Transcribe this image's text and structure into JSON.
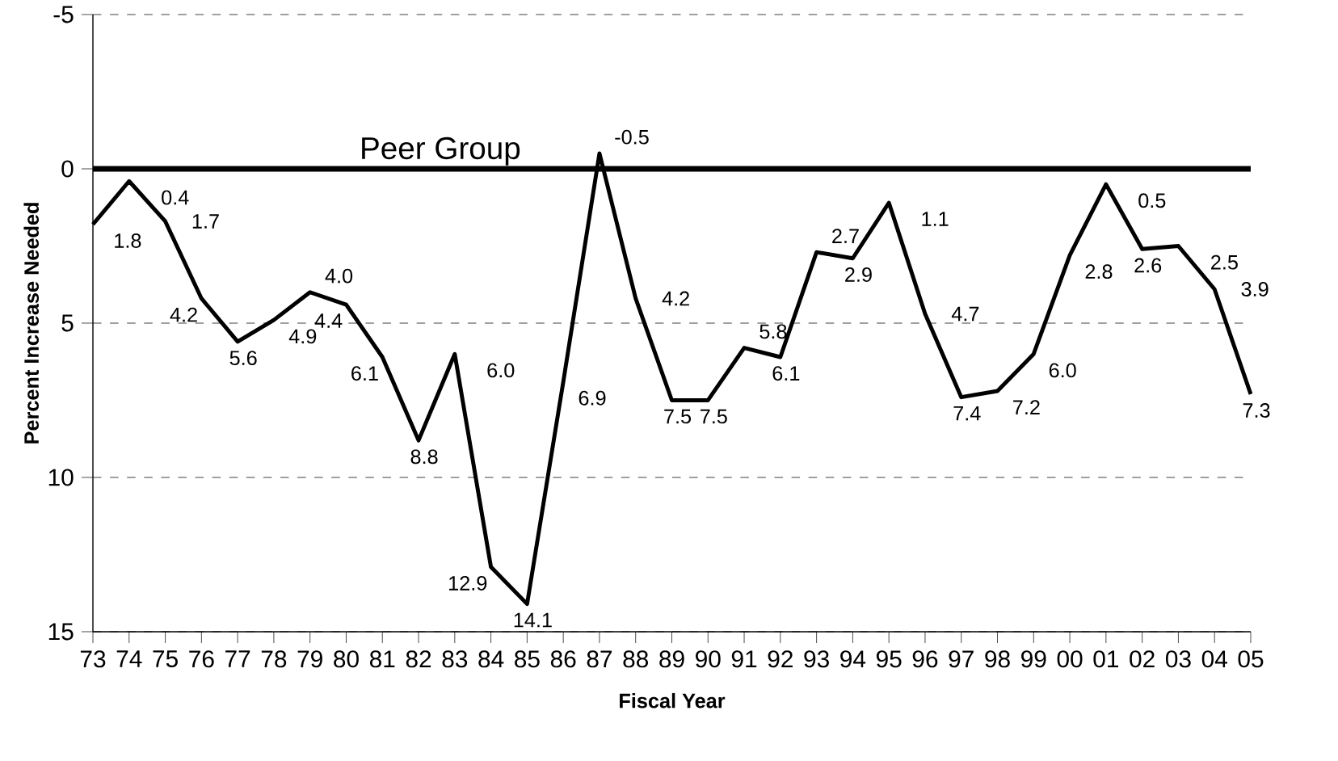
{
  "chart_data": {
    "type": "line",
    "xlabel": "Fiscal Year",
    "ylabel": "Percent Increase Needed",
    "categories": [
      "73",
      "74",
      "75",
      "76",
      "77",
      "78",
      "79",
      "80",
      "81",
      "82",
      "83",
      "84",
      "85",
      "86",
      "87",
      "88",
      "89",
      "90",
      "91",
      "92",
      "93",
      "94",
      "95",
      "96",
      "97",
      "98",
      "99",
      "00",
      "01",
      "02",
      "03",
      "04",
      "05"
    ],
    "series": [
      {
        "color": "#000000",
        "values": [
          1.8,
          0.4,
          1.7,
          4.2,
          5.6,
          4.9,
          4.0,
          4.4,
          6.1,
          8.8,
          6.0,
          12.9,
          14.1,
          6.9,
          -0.5,
          4.2,
          7.5,
          7.5,
          5.8,
          6.1,
          2.7,
          2.9,
          1.1,
          4.7,
          7.4,
          7.2,
          6.0,
          2.8,
          0.5,
          2.6,
          2.5,
          3.9,
          7.3
        ],
        "value_labels": [
          "1.8",
          "0.4",
          "1.7",
          "4.2",
          "5.6",
          "4.9",
          "4.0",
          "4.4",
          "6.1",
          "8.8",
          "6.0",
          "12.9",
          "14.1",
          "6.9",
          "-0.5",
          "4.2",
          "7.5",
          "7.5",
          "5.8",
          "6.1",
          "2.7",
          "2.9",
          "1.1",
          "4.7",
          "7.4",
          "7.2",
          "6.0",
          "2.8",
          "0.5",
          "2.6",
          "2.5",
          "3.9",
          "7.3"
        ]
      }
    ],
    "ylim": [
      15,
      -5
    ],
    "yticks": [
      -5,
      0,
      5,
      10,
      15
    ],
    "grid": "y",
    "marker": "none",
    "line_style": "solid",
    "ref_lines": [
      {
        "axis": "y",
        "value": 0,
        "label": "Peer Group",
        "color": "#000000"
      }
    ]
  }
}
